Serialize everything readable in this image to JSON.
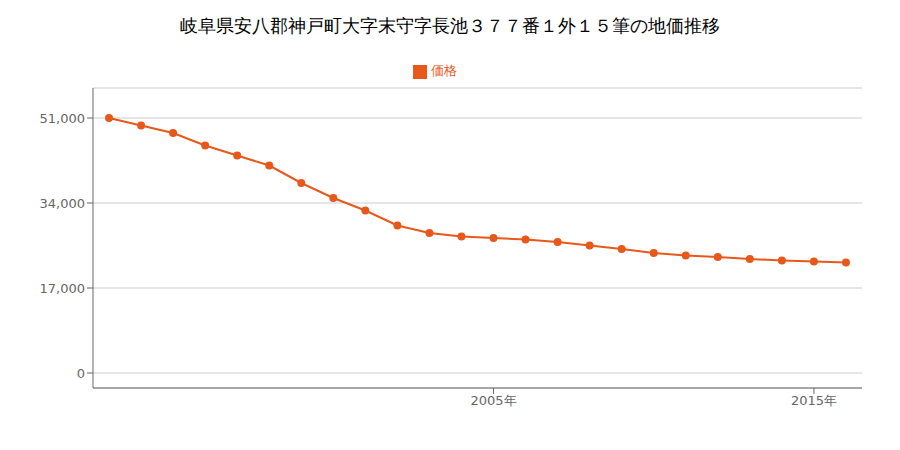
{
  "chart_data": {
    "type": "line",
    "title": "岐阜県安八郡神戸町大字末守字長池３７７番１外１５筆の地価推移",
    "x": [
      1993,
      1994,
      1995,
      1996,
      1997,
      1998,
      1999,
      2000,
      2001,
      2002,
      2003,
      2004,
      2005,
      2006,
      2007,
      2008,
      2009,
      2010,
      2011,
      2012,
      2013,
      2014,
      2015,
      2016
    ],
    "series": [
      {
        "name": "価格",
        "color": "#E8581A",
        "marker": "circle",
        "values": [
          51000,
          49500,
          48000,
          45500,
          43500,
          41500,
          38000,
          35000,
          32500,
          29500,
          28000,
          27300,
          27000,
          26700,
          26200,
          25500,
          24800,
          24000,
          23500,
          23200,
          22800,
          22500,
          22300,
          22100
        ]
      }
    ],
    "xlim": [
      1992.5,
      2016.5
    ],
    "xticks": [
      {
        "value": 2005,
        "label": "2005年"
      },
      {
        "value": 2015,
        "label": "2015年"
      }
    ],
    "ylim": [
      -3000,
      57000
    ],
    "yticks": [
      0,
      {
        "value": 17000,
        "label": "17,000"
      },
      {
        "value": 34000,
        "label": "34,000"
      },
      {
        "value": 51000,
        "label": "51,000"
      }
    ],
    "grid": "y",
    "legend": "top"
  }
}
